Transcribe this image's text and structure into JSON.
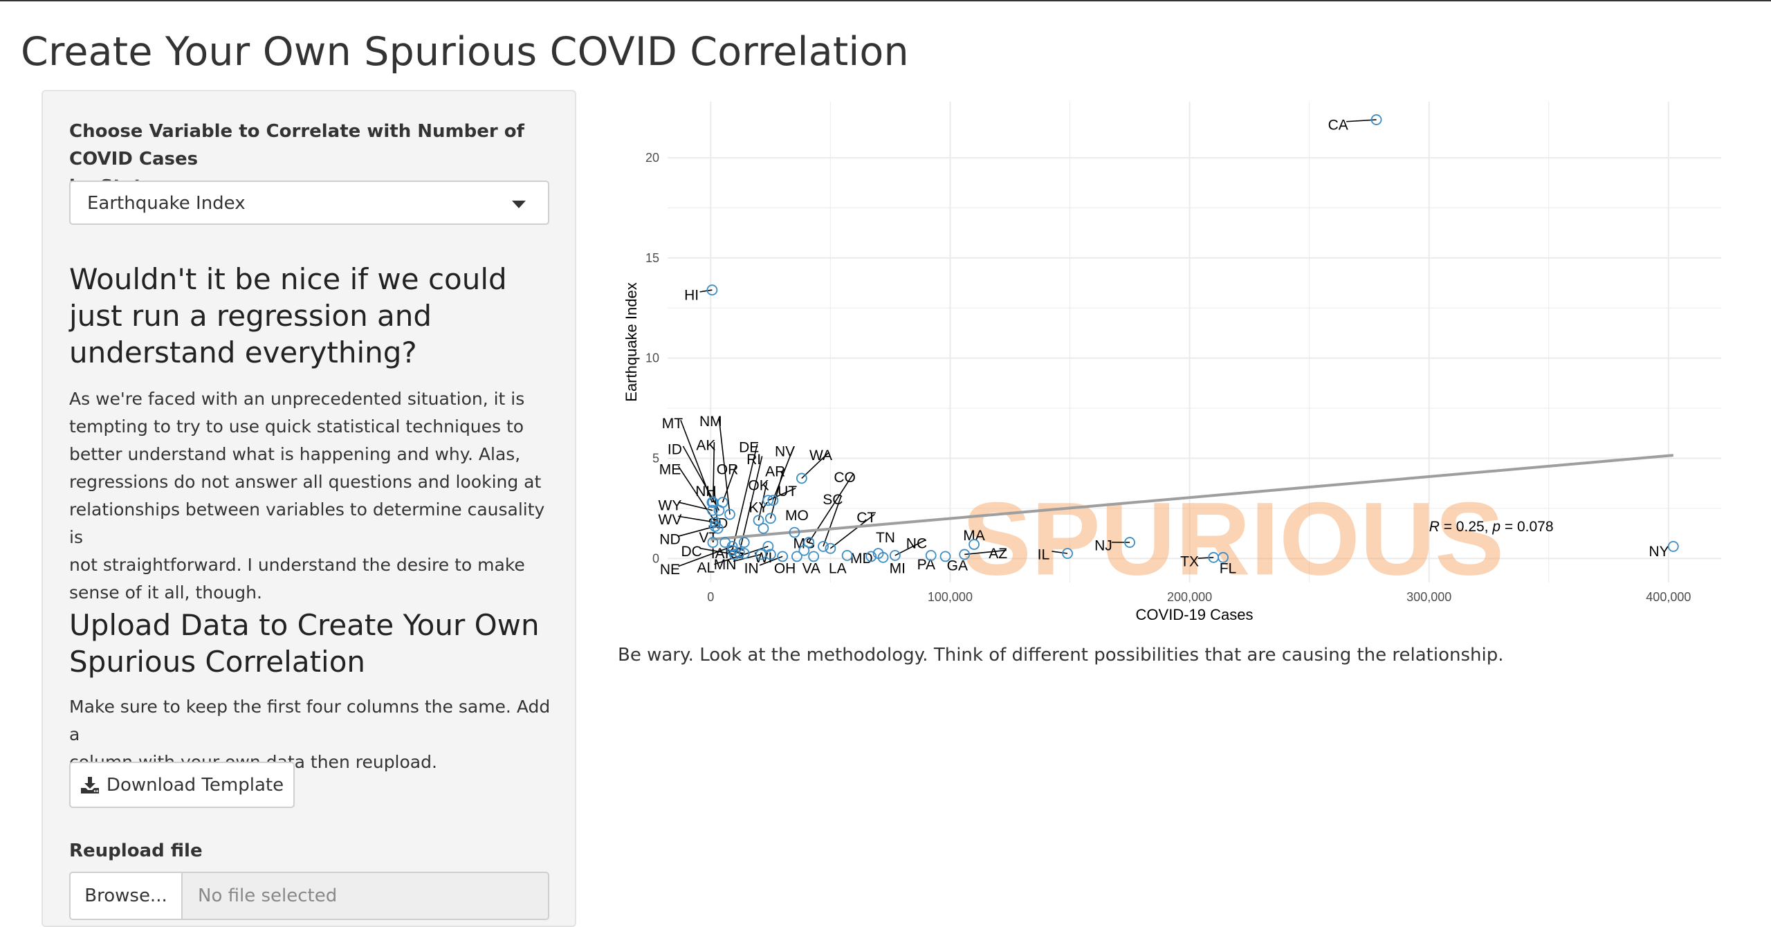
{
  "page": {
    "title": "Create Your Own Spurious COVID Correlation"
  },
  "sidebar": {
    "variable_label_line1": "Choose Variable to Correlate with Number of COVID Cases",
    "variable_label_line2": "by State",
    "variable_select": {
      "value": "Earthquake Index",
      "icon": "chevron-down-icon"
    },
    "heading1_line1": "Wouldn't it be nice if we could",
    "heading1_line2": "just run a regression and",
    "heading1_line3": "understand everything?",
    "paragraph1": [
      "As we're faced with an unprecedented situation, it is",
      "tempting to try to use quick statistical techniques to",
      "better understand what is happening and why. Alas,",
      "regressions do not answer all questions and looking at",
      "relationships between variables to determine causality is",
      "not straightforward. I understand the desire to make",
      "sense of it all, though."
    ],
    "heading2_line1": "Upload Data to Create Your Own",
    "heading2_line2": "Spurious Correlation",
    "paragraph2": [
      "Make sure to keep the first four columns the same. Add a",
      "column with your own data then reupload."
    ],
    "download_button_label": "Download Template",
    "download_icon": "download-icon",
    "reupload_label": "Reupload file",
    "browse_button_label": "Browse...",
    "file_status": "No file selected"
  },
  "main": {
    "caption": "Be wary. Look at the methodology. Think of different possibilities that are causing the relationship."
  },
  "chart_data": {
    "type": "scatter",
    "xlabel": "COVID-19 Cases",
    "ylabel": "Earthquake Index",
    "xlim": [
      -18000,
      422000
    ],
    "ylim": [
      -1.2,
      22.8
    ],
    "x_ticks": [
      0,
      100000,
      200000,
      300000,
      400000
    ],
    "x_tick_labels": [
      "0",
      "100,000",
      "200,000",
      "300,000",
      "400,000"
    ],
    "y_ticks": [
      0,
      5,
      10,
      15,
      20
    ],
    "y_tick_labels": [
      "0",
      "5",
      "10",
      "15",
      "20"
    ],
    "grid": true,
    "watermark": "SPURIOUS",
    "stat_annotation": {
      "r_symbol": "R",
      "r_text": " = 0.25, ",
      "p_symbol": "p",
      "p_text": " = 0.078",
      "x": 300000,
      "y": 1.35
    },
    "regression_line": {
      "x": [
        0,
        402000
      ],
      "y": [
        0.95,
        5.15
      ]
    },
    "colors": {
      "point_stroke": "#3c8dc4",
      "line": "#9e9e9e",
      "watermark": "#f5a15c",
      "grid": "#ebebeb"
    },
    "points": [
      {
        "label": "CA",
        "x": 278000,
        "y": 21.9,
        "lx": 262000,
        "ly": 21.6
      },
      {
        "label": "HI",
        "x": 600,
        "y": 13.4,
        "lx": -8000,
        "ly": 13.1
      },
      {
        "label": "NY",
        "x": 402000,
        "y": 0.6,
        "lx": 396000,
        "ly": 0.3
      },
      {
        "label": "NJ",
        "x": 175000,
        "y": 0.8,
        "lx": 164000,
        "ly": 0.6
      },
      {
        "label": "IL",
        "x": 149000,
        "y": 0.25,
        "lx": 139000,
        "ly": 0.15
      },
      {
        "label": "TX",
        "x": 210000,
        "y": 0.05,
        "lx": 200000,
        "ly": -0.2
      },
      {
        "label": "FL",
        "x": 214000,
        "y": 0.05,
        "lx": 216000,
        "ly": -0.55
      },
      {
        "label": "MA",
        "x": 110000,
        "y": 0.7,
        "lx": 110000,
        "ly": 1.1
      },
      {
        "label": "AZ",
        "x": 106000,
        "y": 0.2,
        "lx": 120000,
        "ly": 0.2
      },
      {
        "label": "GA",
        "x": 98000,
        "y": 0.1,
        "lx": 103000,
        "ly": -0.4
      },
      {
        "label": "PA",
        "x": 92000,
        "y": 0.15,
        "lx": 90000,
        "ly": -0.35
      },
      {
        "label": "NC",
        "x": 77000,
        "y": 0.15,
        "lx": 86000,
        "ly": 0.7
      },
      {
        "label": "MI",
        "x": 72000,
        "y": 0.05,
        "lx": 78000,
        "ly": -0.55
      },
      {
        "label": "TN",
        "x": 70000,
        "y": 0.25,
        "lx": 73000,
        "ly": 1.0
      },
      {
        "label": "MD",
        "x": 67000,
        "y": 0.1,
        "lx": 63000,
        "ly": -0.05
      },
      {
        "label": "LA",
        "x": 57000,
        "y": 0.15,
        "lx": 53000,
        "ly": -0.55
      },
      {
        "label": "CT",
        "x": 50000,
        "y": 0.5,
        "lx": 65000,
        "ly": 2.0
      },
      {
        "label": "SC",
        "x": 47000,
        "y": 0.6,
        "lx": 51000,
        "ly": 2.9
      },
      {
        "label": "CO",
        "x": 41000,
        "y": 0.8,
        "lx": 56000,
        "ly": 4.0
      },
      {
        "label": "VA",
        "x": 43000,
        "y": 0.1,
        "lx": 42000,
        "ly": -0.55
      },
      {
        "label": "OH",
        "x": 36000,
        "y": 0.1,
        "lx": 31000,
        "ly": -0.55
      },
      {
        "label": "MS",
        "x": 39000,
        "y": 0.4,
        "lx": 39000,
        "ly": 0.7
      },
      {
        "label": "WA",
        "x": 38000,
        "y": 4.0,
        "lx": 46000,
        "ly": 5.1
      },
      {
        "label": "MO",
        "x": 35000,
        "y": 1.3,
        "lx": 36000,
        "ly": 2.1
      },
      {
        "label": "NV",
        "x": 26000,
        "y": 2.9,
        "lx": 31000,
        "ly": 5.3
      },
      {
        "label": "AR",
        "x": 25000,
        "y": 2.0,
        "lx": 27000,
        "ly": 4.3
      },
      {
        "label": "UT",
        "x": 24000,
        "y": 2.9,
        "lx": 32000,
        "ly": 3.3
      },
      {
        "label": "KY",
        "x": 22000,
        "y": 1.5,
        "lx": 20000,
        "ly": 2.5
      },
      {
        "label": "OK",
        "x": 20000,
        "y": 1.9,
        "lx": 20000,
        "ly": 3.6
      },
      {
        "label": "IN",
        "x": 30000,
        "y": 0.1,
        "lx": 17000,
        "ly": -0.55
      },
      {
        "label": "WI",
        "x": 25000,
        "y": 0.2,
        "lx": 22000,
        "ly": 0.0
      },
      {
        "label": "MN",
        "x": 21000,
        "y": 0.2,
        "lx": 6000,
        "ly": -0.35
      },
      {
        "label": "AL",
        "x": 24000,
        "y": 0.6,
        "lx": -2000,
        "ly": -0.5
      },
      {
        "label": "KS",
        "x": 14000,
        "y": 0.8,
        "lx": 10000,
        "ly": 0.2
      },
      {
        "label": "RI",
        "x": 12000,
        "y": 0.3,
        "lx": 18000,
        "ly": 4.9
      },
      {
        "label": "DE",
        "x": 9000,
        "y": 0.4,
        "lx": 16000,
        "ly": 5.5
      },
      {
        "label": "SD",
        "x": 6000,
        "y": 0.8,
        "lx": 3000,
        "ly": 1.7
      },
      {
        "label": "OR",
        "x": 5000,
        "y": 2.8,
        "lx": 7000,
        "ly": 4.4
      },
      {
        "label": "NH",
        "x": 3000,
        "y": 1.5,
        "lx": -2000,
        "ly": 3.3
      },
      {
        "label": "ME",
        "x": 2000,
        "y": 1.8,
        "lx": -17000,
        "ly": 4.4
      },
      {
        "label": "AK",
        "x": 1000,
        "y": 2.8,
        "lx": -2000,
        "ly": 5.6
      },
      {
        "label": "NM",
        "x": 8000,
        "y": 2.2,
        "lx": 0,
        "ly": 6.8
      },
      {
        "label": "MT",
        "x": 600,
        "y": 2.8,
        "lx": -16000,
        "ly": 6.7
      },
      {
        "label": "ID",
        "x": 3500,
        "y": 2.4,
        "lx": -15000,
        "ly": 5.4
      },
      {
        "label": "WY",
        "x": 800,
        "y": 2.4,
        "lx": -17000,
        "ly": 2.6
      },
      {
        "label": "WV",
        "x": 2000,
        "y": 1.8,
        "lx": -17000,
        "ly": 1.9
      },
      {
        "label": "ND",
        "x": 1800,
        "y": 1.6,
        "lx": -17000,
        "ly": 0.9
      },
      {
        "label": "DC",
        "x": 10000,
        "y": 0.2,
        "lx": -8000,
        "ly": 0.3
      },
      {
        "label": "NE",
        "x": 9000,
        "y": 0.6,
        "lx": -17000,
        "ly": -0.6
      },
      {
        "label": "VT",
        "x": 900,
        "y": 0.8,
        "lx": -1000,
        "ly": 1.0
      },
      {
        "label": "IA",
        "x": 14000,
        "y": 0.25,
        "lx": 3000,
        "ly": 0.2
      }
    ]
  }
}
